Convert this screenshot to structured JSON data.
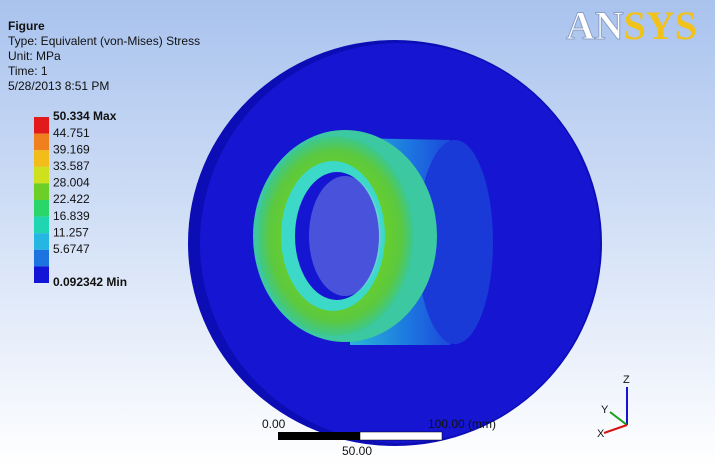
{
  "header": {
    "title": "Figure",
    "lines": [
      "Type: Equivalent (von-Mises) Stress",
      "Unit: MPa",
      "Time: 1",
      "5/28/2013 8:51 PM"
    ]
  },
  "logo": {
    "parts": [
      "AN",
      "SYS"
    ]
  },
  "legend": [
    {
      "label": "50.334 Max",
      "color": "#e31a1c"
    },
    {
      "label": "44.751",
      "color": "#f0801e"
    },
    {
      "label": "39.169",
      "color": "#f2bc1a"
    },
    {
      "label": "33.587",
      "color": "#cfe01f"
    },
    {
      "label": "28.004",
      "color": "#6ccf27"
    },
    {
      "label": "22.422",
      "color": "#2ad66a"
    },
    {
      "label": "16.839",
      "color": "#20d6b2"
    },
    {
      "label": "11.257",
      "color": "#25b6e2"
    },
    {
      "label": "5.6747",
      "color": "#1c74e0"
    },
    {
      "label": "0.092342 Min",
      "color": "#1414d6"
    }
  ],
  "scale_bar": {
    "left": "0.00",
    "right": "100.00 (mm)",
    "middle": "50.00"
  },
  "triad": {
    "z": "Z",
    "y": "Y",
    "x": "X"
  }
}
